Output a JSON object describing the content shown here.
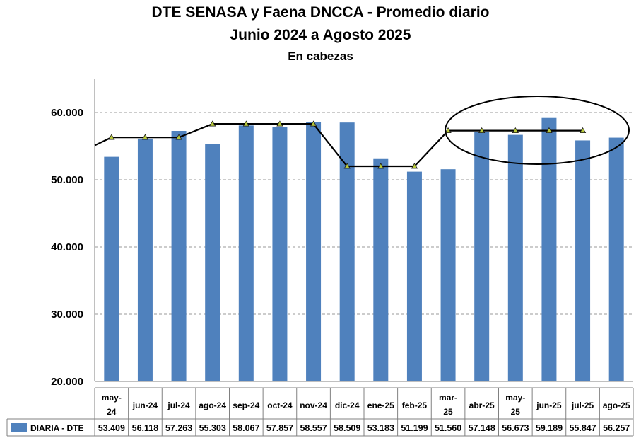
{
  "chart_data": {
    "type": "bar",
    "title": "DTE SENASA y Faena DNCCA - Promedio diario",
    "subtitle": "Junio 2024 a Agosto 2025",
    "unit_label": "En cabezas",
    "categories": [
      [
        "may-",
        "24"
      ],
      [
        "jun-24"
      ],
      [
        "jul-24"
      ],
      [
        "ago-24"
      ],
      [
        "sep-24"
      ],
      [
        "oct-24"
      ],
      [
        "nov-24"
      ],
      [
        "dic-24"
      ],
      [
        "ene-25"
      ],
      [
        "feb-25"
      ],
      [
        "mar-",
        "25"
      ],
      [
        "abr-25"
      ],
      [
        "may-",
        "25"
      ],
      [
        "jun-25"
      ],
      [
        "jul-25"
      ],
      [
        "ago-25"
      ]
    ],
    "series": [
      {
        "name": "DIARIA -  DTE",
        "values": [
          53409,
          56118,
          57263,
          55303,
          58067,
          57857,
          58557,
          58509,
          53183,
          51199,
          51560,
          57148,
          56673,
          59189,
          55847,
          56257
        ],
        "labels": [
          "53.409",
          "56.118",
          "57.263",
          "55.303",
          "58.067",
          "57.857",
          "58.557",
          "58.509",
          "53.183",
          "51.199",
          "51.560",
          "57.148",
          "56.673",
          "59.189",
          "55.847",
          "56.257"
        ],
        "color": "#4f81bd"
      }
    ],
    "trend_line": {
      "color": "#000000",
      "marker_color": "#b8c93a",
      "start_value": 55100,
      "values": [
        56300,
        56300,
        56300,
        58300,
        58300,
        58300,
        58300,
        52000,
        52000,
        52000,
        57300,
        57300,
        57300,
        57300,
        57300
      ]
    },
    "ylim": [
      20000,
      65000
    ],
    "yticks": [
      20000,
      30000,
      40000,
      50000,
      60000
    ],
    "ytick_labels": [
      "20.000",
      "30.000",
      "40.000",
      "50.000",
      "60.000"
    ],
    "grid": true,
    "legend": "bottom-table",
    "annotation": "ellipse around abr-25 to ago-25"
  }
}
